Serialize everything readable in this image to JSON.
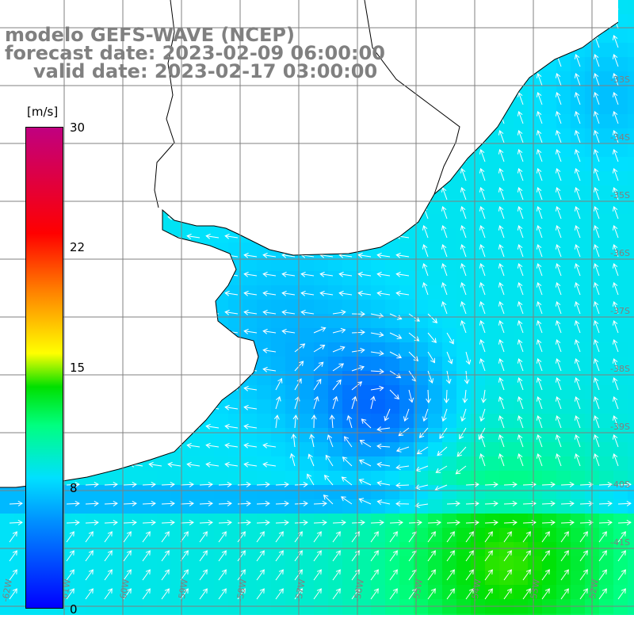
{
  "title": {
    "model": "modelo GEFS-WAVE (NCEP)",
    "forecast": "forecast date: 2023-02-09 06:00:00",
    "valid": "valid date: 2023-02-17 03:00:00"
  },
  "colorbar": {
    "unit": "[m/s]",
    "ticks": [
      "30",
      "22",
      "15",
      "8",
      "0"
    ],
    "tick_values": [
      30,
      22,
      15,
      8,
      0
    ],
    "range": [
      0,
      30
    ],
    "colors": [
      "#0000ff",
      "#0090ff",
      "#00e0ff",
      "#00ff80",
      "#00e000",
      "#ffff00",
      "#ff8000",
      "#ff0000",
      "#c00080"
    ]
  },
  "lat_labels": [
    "-33S",
    "-34S",
    "-35S",
    "-36S",
    "-37S",
    "-38S",
    "-39S",
    "-40S",
    "-41S"
  ],
  "lon_labels": [
    "-62W",
    "-61W",
    "-60W",
    "-59W",
    "-58W",
    "-57W",
    "-56W",
    "-55W",
    "-54W",
    "-53W",
    "-52W"
  ],
  "colors": {
    "land": "#ffffff",
    "coast": "#000000",
    "grid": "#808080",
    "arrow": "#ffffff",
    "title": "#808080"
  }
}
